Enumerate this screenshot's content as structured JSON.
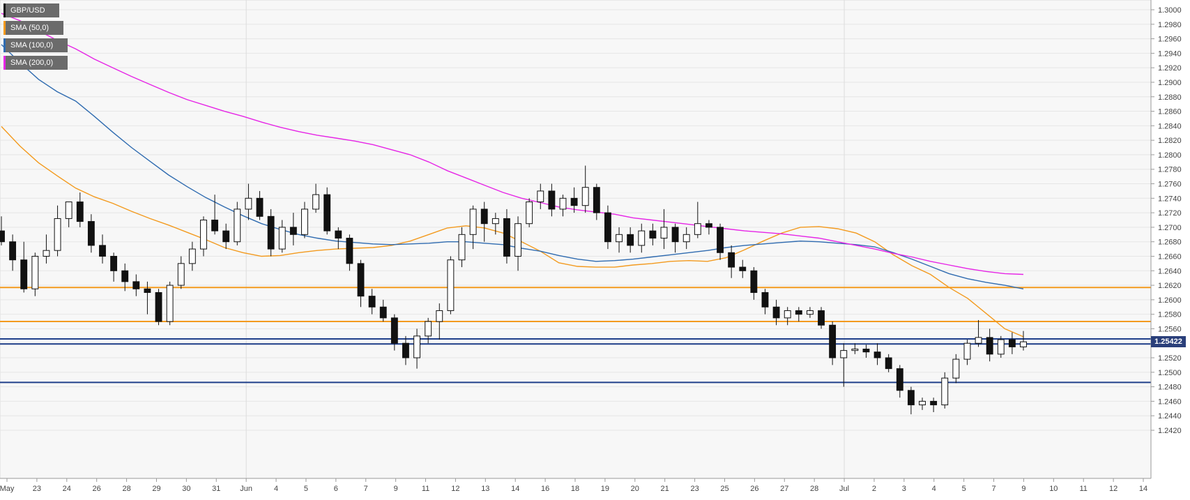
{
  "legend": {
    "symbol": "GBP/USD",
    "sma50": "SMA (50,0)",
    "sma100": "SMA (100,0)",
    "sma200": "SMA (200,0)"
  },
  "last_price_label": "1.25422",
  "chart_data": {
    "type": "candlestick",
    "title": "",
    "symbol": "GBP/USD",
    "x_tick_labels": [
      "May",
      "23",
      "24",
      "26",
      "28",
      "29",
      "30",
      "31",
      "Jun",
      "4",
      "5",
      "6",
      "7",
      "9",
      "11",
      "12",
      "13",
      "14",
      "16",
      "18",
      "19",
      "20",
      "21",
      "23",
      "25",
      "26",
      "27",
      "28",
      "Jul",
      "2",
      "3",
      "4",
      "5",
      "7",
      "9",
      "10",
      "11",
      "12",
      "14"
    ],
    "y_tick_labels": [
      "1.3000",
      "1.2980",
      "1.2960",
      "1.2940",
      "1.2920",
      "1.2900",
      "1.2880",
      "1.2860",
      "1.2840",
      "1.2820",
      "1.2800",
      "1.2780",
      "1.2760",
      "1.2740",
      "1.2720",
      "1.2700",
      "1.2680",
      "1.2660",
      "1.2640",
      "1.2620",
      "1.2600",
      "1.2580",
      "1.2560",
      "1.2540",
      "1.2520",
      "1.2500",
      "1.2480",
      "1.2460",
      "1.2440",
      "1.2420"
    ],
    "ylim": [
      1.2415,
      1.3008
    ],
    "grid": true,
    "legend_position": "top-left",
    "last_price": 1.25422,
    "horizontal_levels": [
      {
        "value": 1.2617,
        "color": "#f39a1e"
      },
      {
        "value": 1.257,
        "color": "#f39a1e"
      },
      {
        "value": 1.2546,
        "color": "#1f3f8a"
      },
      {
        "value": 1.2539,
        "color": "#1f3f8a"
      },
      {
        "value": 1.2486,
        "color": "#1f3f8a"
      }
    ],
    "series": [
      {
        "name": "SMA (50,0)",
        "color": "#f39a1e",
        "values": [
          1.2839,
          1.2812,
          1.2789,
          1.2771,
          1.2754,
          1.2742,
          1.2733,
          1.2722,
          1.2712,
          1.2703,
          1.2693,
          1.2683,
          1.2672,
          1.2665,
          1.266,
          1.2661,
          1.2665,
          1.2668,
          1.267,
          1.2671,
          1.2672,
          1.2675,
          1.2681,
          1.269,
          1.2699,
          1.2702,
          1.2699,
          1.2692,
          1.268,
          1.2667,
          1.2651,
          1.2646,
          1.2645,
          1.2645,
          1.2648,
          1.265,
          1.2653,
          1.2654,
          1.2653,
          1.2658,
          1.2669,
          1.2681,
          1.2692,
          1.27,
          1.2701,
          1.2698,
          1.2692,
          1.268,
          1.2662,
          1.2647,
          1.2635,
          1.2617,
          1.2602,
          1.2581,
          1.256,
          1.2549
        ]
      },
      {
        "name": "SMA (100,0)",
        "color": "#2f6bb0",
        "values": [
          1.2952,
          1.2927,
          1.2904,
          1.2887,
          1.2874,
          1.2853,
          1.2831,
          1.281,
          1.2791,
          1.2772,
          1.2756,
          1.2741,
          1.2728,
          1.2716,
          1.2705,
          1.2697,
          1.269,
          1.2685,
          1.2681,
          1.2679,
          1.2677,
          1.2676,
          1.2677,
          1.2678,
          1.268,
          1.268,
          1.2678,
          1.2676,
          1.2671,
          1.2667,
          1.2661,
          1.2656,
          1.2653,
          1.2654,
          1.2656,
          1.2659,
          1.2662,
          1.2665,
          1.2668,
          1.2672,
          1.2675,
          1.2677,
          1.2679,
          1.2681,
          1.268,
          1.2678,
          1.2676,
          1.2673,
          1.2665,
          1.2656,
          1.2646,
          1.2636,
          1.2629,
          1.2624,
          1.262,
          1.2615
        ]
      },
      {
        "name": "SMA (200,0)",
        "color": "#e625e6",
        "values": [
          1.2995,
          1.2985,
          1.2971,
          1.2958,
          1.2946,
          1.2932,
          1.292,
          1.2908,
          1.2897,
          1.2886,
          1.2876,
          1.2868,
          1.286,
          1.2853,
          1.2845,
          1.2838,
          1.2832,
          1.2827,
          1.2823,
          1.2819,
          1.2814,
          1.2807,
          1.28,
          1.279,
          1.2778,
          1.2768,
          1.2758,
          1.2748,
          1.274,
          1.2734,
          1.2728,
          1.2724,
          1.2721,
          1.2718,
          1.2713,
          1.271,
          1.2707,
          1.2704,
          1.2701,
          1.2698,
          1.2695,
          1.2693,
          1.2691,
          1.2688,
          1.2685,
          1.268,
          1.2675,
          1.267,
          1.2664,
          1.2659,
          1.2653,
          1.2648,
          1.2643,
          1.2639,
          1.2636,
          1.2635
        ]
      }
    ],
    "candles": [
      {
        "o": 1.2695,
        "h": 1.2715,
        "l": 1.2675,
        "c": 1.268
      },
      {
        "o": 1.268,
        "h": 1.269,
        "l": 1.264,
        "c": 1.2655
      },
      {
        "o": 1.2655,
        "h": 1.268,
        "l": 1.261,
        "c": 1.2615
      },
      {
        "o": 1.2615,
        "h": 1.2665,
        "l": 1.2605,
        "c": 1.266
      },
      {
        "o": 1.266,
        "h": 1.269,
        "l": 1.265,
        "c": 1.2668
      },
      {
        "o": 1.2668,
        "h": 1.273,
        "l": 1.266,
        "c": 1.2712
      },
      {
        "o": 1.2712,
        "h": 1.2735,
        "l": 1.27,
        "c": 1.2735
      },
      {
        "o": 1.2735,
        "h": 1.2748,
        "l": 1.27,
        "c": 1.2708
      },
      {
        "o": 1.2708,
        "h": 1.2718,
        "l": 1.2665,
        "c": 1.2675
      },
      {
        "o": 1.2675,
        "h": 1.269,
        "l": 1.265,
        "c": 1.266
      },
      {
        "o": 1.266,
        "h": 1.2665,
        "l": 1.2625,
        "c": 1.264
      },
      {
        "o": 1.264,
        "h": 1.265,
        "l": 1.2612,
        "c": 1.2625
      },
      {
        "o": 1.2625,
        "h": 1.2635,
        "l": 1.2605,
        "c": 1.2615
      },
      {
        "o": 1.2615,
        "h": 1.2625,
        "l": 1.258,
        "c": 1.261
      },
      {
        "o": 1.261,
        "h": 1.2615,
        "l": 1.2565,
        "c": 1.257
      },
      {
        "o": 1.257,
        "h": 1.2625,
        "l": 1.2565,
        "c": 1.262
      },
      {
        "o": 1.262,
        "h": 1.266,
        "l": 1.2615,
        "c": 1.265
      },
      {
        "o": 1.265,
        "h": 1.268,
        "l": 1.264,
        "c": 1.267
      },
      {
        "o": 1.267,
        "h": 1.2715,
        "l": 1.266,
        "c": 1.271
      },
      {
        "o": 1.271,
        "h": 1.2745,
        "l": 1.269,
        "c": 1.2695
      },
      {
        "o": 1.2695,
        "h": 1.2705,
        "l": 1.267,
        "c": 1.268
      },
      {
        "o": 1.268,
        "h": 1.2735,
        "l": 1.2675,
        "c": 1.2725
      },
      {
        "o": 1.2725,
        "h": 1.276,
        "l": 1.271,
        "c": 1.274
      },
      {
        "o": 1.274,
        "h": 1.275,
        "l": 1.271,
        "c": 1.2715
      },
      {
        "o": 1.2715,
        "h": 1.2725,
        "l": 1.266,
        "c": 1.267
      },
      {
        "o": 1.267,
        "h": 1.271,
        "l": 1.2665,
        "c": 1.27
      },
      {
        "o": 1.27,
        "h": 1.272,
        "l": 1.2675,
        "c": 1.269
      },
      {
        "o": 1.269,
        "h": 1.2735,
        "l": 1.2685,
        "c": 1.2725
      },
      {
        "o": 1.2725,
        "h": 1.276,
        "l": 1.272,
        "c": 1.2745
      },
      {
        "o": 1.2745,
        "h": 1.2755,
        "l": 1.269,
        "c": 1.2695
      },
      {
        "o": 1.2695,
        "h": 1.27,
        "l": 1.267,
        "c": 1.2685
      },
      {
        "o": 1.2685,
        "h": 1.269,
        "l": 1.264,
        "c": 1.265
      },
      {
        "o": 1.265,
        "h": 1.2655,
        "l": 1.259,
        "c": 1.2605
      },
      {
        "o": 1.2605,
        "h": 1.2615,
        "l": 1.258,
        "c": 1.259
      },
      {
        "o": 1.259,
        "h": 1.26,
        "l": 1.257,
        "c": 1.2575
      },
      {
        "o": 1.2575,
        "h": 1.258,
        "l": 1.253,
        "c": 1.254
      },
      {
        "o": 1.254,
        "h": 1.255,
        "l": 1.251,
        "c": 1.252
      },
      {
        "o": 1.252,
        "h": 1.256,
        "l": 1.2505,
        "c": 1.255
      },
      {
        "o": 1.255,
        "h": 1.2575,
        "l": 1.254,
        "c": 1.257
      },
      {
        "o": 1.257,
        "h": 1.2595,
        "l": 1.2545,
        "c": 1.2585
      },
      {
        "o": 1.2585,
        "h": 1.266,
        "l": 1.258,
        "c": 1.2655
      },
      {
        "o": 1.2655,
        "h": 1.27,
        "l": 1.2645,
        "c": 1.269
      },
      {
        "o": 1.269,
        "h": 1.273,
        "l": 1.267,
        "c": 1.2725
      },
      {
        "o": 1.2725,
        "h": 1.2735,
        "l": 1.268,
        "c": 1.2705
      },
      {
        "o": 1.2705,
        "h": 1.272,
        "l": 1.269,
        "c": 1.2712
      },
      {
        "o": 1.2712,
        "h": 1.2725,
        "l": 1.265,
        "c": 1.266
      },
      {
        "o": 1.266,
        "h": 1.2715,
        "l": 1.264,
        "c": 1.2705
      },
      {
        "o": 1.2705,
        "h": 1.274,
        "l": 1.27,
        "c": 1.2735
      },
      {
        "o": 1.2735,
        "h": 1.276,
        "l": 1.2725,
        "c": 1.275
      },
      {
        "o": 1.275,
        "h": 1.276,
        "l": 1.2715,
        "c": 1.2725
      },
      {
        "o": 1.2725,
        "h": 1.2745,
        "l": 1.2715,
        "c": 1.274
      },
      {
        "o": 1.274,
        "h": 1.2755,
        "l": 1.272,
        "c": 1.273
      },
      {
        "o": 1.273,
        "h": 1.2785,
        "l": 1.272,
        "c": 1.2755
      },
      {
        "o": 1.2755,
        "h": 1.276,
        "l": 1.271,
        "c": 1.272
      },
      {
        "o": 1.272,
        "h": 1.273,
        "l": 1.267,
        "c": 1.268
      },
      {
        "o": 1.268,
        "h": 1.27,
        "l": 1.2665,
        "c": 1.269
      },
      {
        "o": 1.269,
        "h": 1.27,
        "l": 1.2665,
        "c": 1.2675
      },
      {
        "o": 1.2675,
        "h": 1.2705,
        "l": 1.2665,
        "c": 1.2695
      },
      {
        "o": 1.2695,
        "h": 1.2705,
        "l": 1.2675,
        "c": 1.2685
      },
      {
        "o": 1.2685,
        "h": 1.2725,
        "l": 1.267,
        "c": 1.27
      },
      {
        "o": 1.27,
        "h": 1.2705,
        "l": 1.2665,
        "c": 1.268
      },
      {
        "o": 1.268,
        "h": 1.27,
        "l": 1.267,
        "c": 1.269
      },
      {
        "o": 1.269,
        "h": 1.2735,
        "l": 1.2685,
        "c": 1.2705
      },
      {
        "o": 1.2705,
        "h": 1.271,
        "l": 1.269,
        "c": 1.27
      },
      {
        "o": 1.27,
        "h": 1.2705,
        "l": 1.2655,
        "c": 1.2665
      },
      {
        "o": 1.2665,
        "h": 1.2675,
        "l": 1.263,
        "c": 1.2645
      },
      {
        "o": 1.2645,
        "h": 1.2655,
        "l": 1.263,
        "c": 1.264
      },
      {
        "o": 1.264,
        "h": 1.2645,
        "l": 1.26,
        "c": 1.261
      },
      {
        "o": 1.261,
        "h": 1.2615,
        "l": 1.258,
        "c": 1.259
      },
      {
        "o": 1.259,
        "h": 1.26,
        "l": 1.2565,
        "c": 1.2575
      },
      {
        "o": 1.2575,
        "h": 1.259,
        "l": 1.2565,
        "c": 1.2585
      },
      {
        "o": 1.2585,
        "h": 1.259,
        "l": 1.257,
        "c": 1.258
      },
      {
        "o": 1.258,
        "h": 1.259,
        "l": 1.2575,
        "c": 1.2585
      },
      {
        "o": 1.2585,
        "h": 1.259,
        "l": 1.256,
        "c": 1.2565
      },
      {
        "o": 1.2565,
        "h": 1.257,
        "l": 1.251,
        "c": 1.252
      },
      {
        "o": 1.252,
        "h": 1.254,
        "l": 1.248,
        "c": 1.253
      },
      {
        "o": 1.253,
        "h": 1.254,
        "l": 1.2525,
        "c": 1.2532
      },
      {
        "o": 1.2532,
        "h": 1.2538,
        "l": 1.252,
        "c": 1.2528
      },
      {
        "o": 1.2528,
        "h": 1.254,
        "l": 1.251,
        "c": 1.252
      },
      {
        "o": 1.252,
        "h": 1.2525,
        "l": 1.25,
        "c": 1.2505
      },
      {
        "o": 1.2505,
        "h": 1.251,
        "l": 1.2465,
        "c": 1.2475
      },
      {
        "o": 1.2475,
        "h": 1.248,
        "l": 1.2442,
        "c": 1.2455
      },
      {
        "o": 1.2455,
        "h": 1.2465,
        "l": 1.2448,
        "c": 1.246
      },
      {
        "o": 1.246,
        "h": 1.2465,
        "l": 1.2445,
        "c": 1.2455
      },
      {
        "o": 1.2455,
        "h": 1.25,
        "l": 1.245,
        "c": 1.2492
      },
      {
        "o": 1.2492,
        "h": 1.2525,
        "l": 1.2485,
        "c": 1.2518
      },
      {
        "o": 1.2518,
        "h": 1.2545,
        "l": 1.251,
        "c": 1.254
      },
      {
        "o": 1.254,
        "h": 1.2572,
        "l": 1.2535,
        "c": 1.2548
      },
      {
        "o": 1.2548,
        "h": 1.256,
        "l": 1.2515,
        "c": 1.2525
      },
      {
        "o": 1.2525,
        "h": 1.255,
        "l": 1.252,
        "c": 1.2545
      },
      {
        "o": 1.2545,
        "h": 1.2555,
        "l": 1.2525,
        "c": 1.2535
      },
      {
        "o": 1.2535,
        "h": 1.2557,
        "l": 1.253,
        "c": 1.2542
      }
    ]
  }
}
